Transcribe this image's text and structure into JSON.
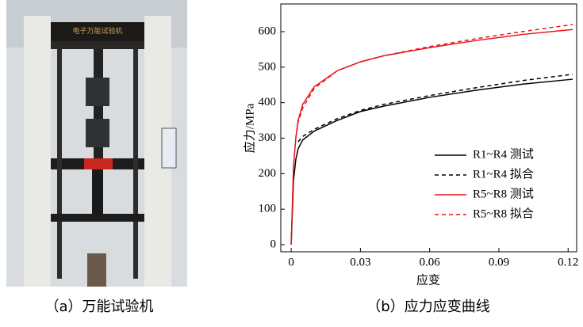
{
  "photo_caption": "（a）万能试验机",
  "chart_data": {
    "type": "line",
    "caption": "（b）应力应变曲线",
    "x_label": "应变",
    "y_label": "应力/MPa",
    "x": [
      0,
      0.001,
      0.002,
      0.003,
      0.005,
      0.01,
      0.02,
      0.03,
      0.04,
      0.06,
      0.08,
      0.1,
      0.122
    ],
    "series": [
      {
        "name": "R1~R4 测试",
        "color": "#000000",
        "dashed": false,
        "values": [
          0,
          180,
          240,
          270,
          295,
          320,
          350,
          375,
          390,
          415,
          435,
          452,
          466
        ]
      },
      {
        "name": "R1~R4 拟合",
        "color": "#000000",
        "dashed": true,
        "values": [
          null,
          null,
          null,
          290,
          305,
          325,
          355,
          378,
          395,
          420,
          442,
          462,
          480
        ]
      },
      {
        "name": "R5~R8 测试",
        "color": "#e8141b",
        "dashed": false,
        "values": [
          0,
          220,
          300,
          350,
          395,
          445,
          490,
          515,
          532,
          555,
          575,
          592,
          606
        ]
      },
      {
        "name": "R5~R8 拟合",
        "color": "#e8141b",
        "dashed": true,
        "values": [
          null,
          null,
          300,
          345,
          385,
          440,
          490,
          515,
          532,
          558,
          580,
          600,
          620
        ]
      }
    ],
    "xlim": [
      -0.0045,
      0.1237
    ],
    "ylim": [
      -20,
      678
    ],
    "xticks": [
      0,
      0.03,
      0.06,
      0.09,
      0.12
    ],
    "yticks": [
      0,
      100,
      200,
      300,
      400,
      500,
      600
    ],
    "legend": "lower right"
  }
}
